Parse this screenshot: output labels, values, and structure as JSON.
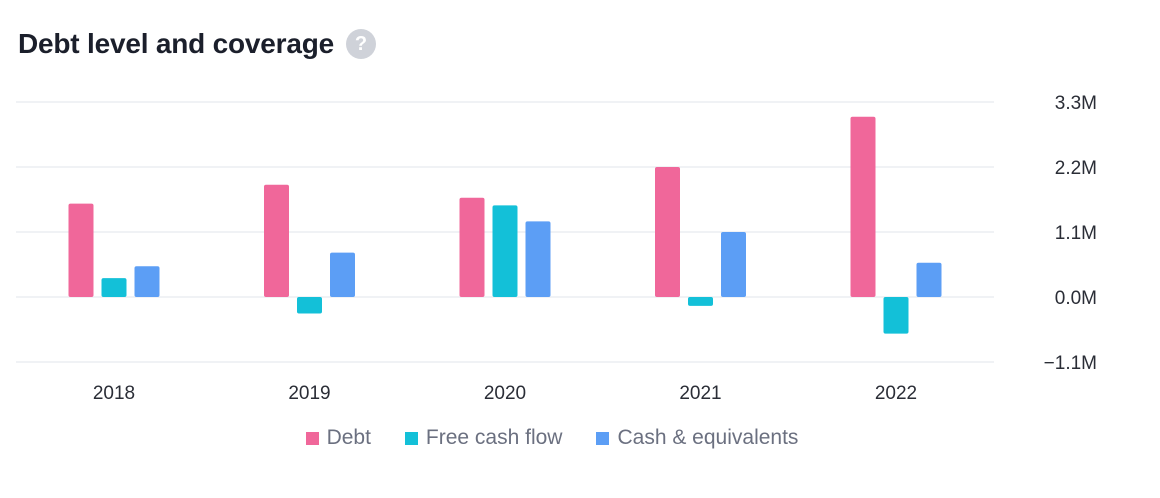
{
  "header": {
    "title": "Debt level and coverage",
    "help_icon": "question-mark-icon",
    "help_glyph": "?"
  },
  "colors": {
    "debt": "#f0679a",
    "free_cash_flow": "#13c0d8",
    "cash_equivalents": "#5c9ef5",
    "gridline": "#eceef2"
  },
  "chart_data": {
    "type": "bar",
    "title": "Debt level and coverage",
    "xlabel": "",
    "ylabel": "",
    "categories": [
      "2018",
      "2019",
      "2020",
      "2021",
      "2022"
    ],
    "series": [
      {
        "name": "Debt",
        "color": "#f0679a",
        "values": [
          1.58,
          1.9,
          1.68,
          2.2,
          3.05
        ]
      },
      {
        "name": "Free cash flow",
        "color": "#13c0d8",
        "values": [
          0.32,
          -0.28,
          1.55,
          -0.15,
          -0.62
        ]
      },
      {
        "name": "Cash & equivalents",
        "color": "#5c9ef5",
        "values": [
          0.52,
          0.75,
          1.28,
          1.1,
          0.58
        ]
      }
    ],
    "ylim": [
      -1.1,
      3.3
    ],
    "yticks": [
      3.3,
      2.2,
      1.1,
      0.0,
      -1.1
    ],
    "ytick_labels": [
      "3.3M",
      "2.2M",
      "1.1M",
      "0.0M",
      "−1.1M"
    ],
    "unit": "M",
    "grid": true,
    "legend_position": "bottom-center"
  }
}
